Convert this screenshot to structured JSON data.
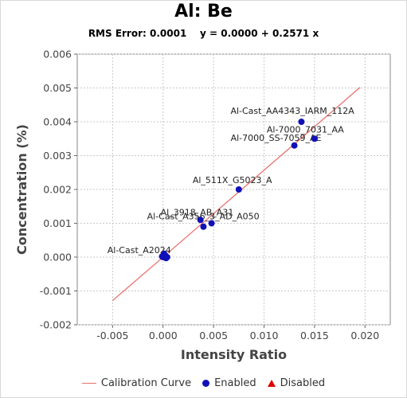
{
  "chart_data": {
    "type": "scatter",
    "title": "Al: Be",
    "subtitle": "RMS Error: 0.0001    y = 0.0000 + 0.2571 x",
    "xlabel": "Intensity Ratio",
    "ylabel": "Concentration (%)",
    "xlim": [
      -0.0085,
      0.0225
    ],
    "ylim": [
      -0.002,
      0.006
    ],
    "x_ticks": [
      "-0.005",
      "0.000",
      "0.005",
      "0.010",
      "0.015",
      "0.020"
    ],
    "x_tick_values": [
      -0.005,
      0.0,
      0.005,
      0.01,
      0.015,
      0.02
    ],
    "y_ticks": [
      "-0.002",
      "-0.001",
      "0.000",
      "0.001",
      "0.002",
      "0.003",
      "0.004",
      "0.005",
      "0.006"
    ],
    "y_tick_values": [
      -0.002,
      -0.001,
      0.0,
      0.001,
      0.002,
      0.003,
      0.004,
      0.005,
      0.006
    ],
    "grid": true,
    "calibration_line": {
      "intercept": 0.0,
      "slope": 0.2571,
      "x_range": [
        -0.005,
        0.0195
      ]
    },
    "points": [
      {
        "x": 0.0137,
        "y": 0.004,
        "label": "Al-Cast_AA4343_IARM_112A"
      },
      {
        "x": 0.015,
        "y": 0.0035,
        "label": "Al-7000_7031_AA"
      },
      {
        "x": 0.013,
        "y": 0.0033,
        "label": "Al-7000_SS-7059_AE"
      },
      {
        "x": 0.0075,
        "y": 0.002,
        "label": "Al_511X_G5023_A"
      },
      {
        "x": 0.0037,
        "y": 0.0011,
        "label": "Al_3918_AB_A31"
      },
      {
        "x": 0.0048,
        "y": 0.001,
        "label": "Al-Cast_A356_3_AD_A050"
      },
      {
        "x": 0.004,
        "y": 0.0009,
        "label": ""
      },
      {
        "x": 0.0,
        "y": 0.0,
        "label": "Al-Cast_A2024"
      },
      {
        "x": 0.0002,
        "y": 5e-05,
        "label": ""
      },
      {
        "x": 0.0004,
        "y": 0.0,
        "label": ""
      },
      {
        "x": -0.0001,
        "y": 2e-05,
        "label": ""
      },
      {
        "x": 0.0003,
        "y": -3e-05,
        "label": ""
      },
      {
        "x": 0.0001,
        "y": 0.0001,
        "label": ""
      }
    ],
    "legend": {
      "position": "bottom",
      "items": [
        {
          "label": "Calibration Curve",
          "symbol": "line",
          "color": "#e8736e"
        },
        {
          "label": "Enabled",
          "symbol": "circle",
          "color": "#1010b8"
        },
        {
          "label": "Disabled",
          "symbol": "triangle",
          "color": "#e00000"
        }
      ]
    },
    "colors": {
      "line": "#e8736e",
      "enabled": "#1010b8",
      "disabled": "#e00000",
      "plot_bg": "#ffffff",
      "grid": "#c8c8c8"
    }
  }
}
